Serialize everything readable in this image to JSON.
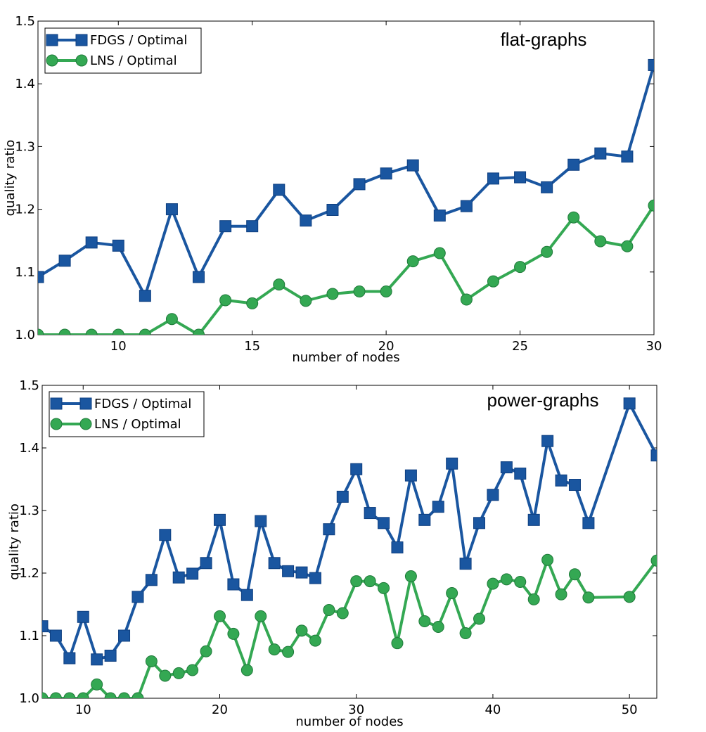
{
  "colors": {
    "fdgs": "#1a56a0",
    "fdgs_edge": "#0e3f80",
    "lns": "#34a853",
    "lns_edge": "#1f7a3a"
  },
  "chart_data": [
    {
      "type": "line",
      "annotation": "flat-graphs",
      "xlabel": "number of nodes",
      "ylabel": "quality ratio",
      "xlim": [
        7,
        30
      ],
      "ylim": [
        1.0,
        1.5
      ],
      "xticks": [
        "10",
        "15",
        "20",
        "25",
        "30"
      ],
      "yticks": [
        "1.0",
        "1.1",
        "1.2",
        "1.3",
        "1.4",
        "1.5"
      ],
      "legend_position": "top-left",
      "grid": false,
      "series": [
        {
          "name": "FDGS / Optimal",
          "marker": "square",
          "x": [
            7,
            8,
            9,
            10,
            11,
            12,
            13,
            14,
            15,
            16,
            17,
            18,
            19,
            20,
            21,
            22,
            23,
            24,
            25,
            26,
            27,
            28,
            29,
            30
          ],
          "y": [
            1.092,
            1.118,
            1.147,
            1.142,
            1.062,
            1.2,
            1.092,
            1.173,
            1.173,
            1.231,
            1.182,
            1.199,
            1.24,
            1.257,
            1.27,
            1.19,
            1.205,
            1.249,
            1.251,
            1.235,
            1.271,
            1.289,
            1.284,
            1.43
          ]
        },
        {
          "name": "LNS / Optimal",
          "marker": "circle",
          "x": [
            7,
            8,
            9,
            10,
            11,
            12,
            13,
            14,
            15,
            16,
            17,
            18,
            19,
            20,
            21,
            22,
            23,
            24,
            25,
            26,
            27,
            28,
            29,
            30
          ],
          "y": [
            1.0,
            1.0,
            1.0,
            1.0,
            1.0,
            1.025,
            1.0,
            1.055,
            1.05,
            1.08,
            1.054,
            1.065,
            1.069,
            1.069,
            1.117,
            1.13,
            1.056,
            1.085,
            1.108,
            1.132,
            1.187,
            1.149,
            1.141,
            1.206
          ]
        }
      ]
    },
    {
      "type": "line",
      "annotation": "power-graphs",
      "xlabel": "number of nodes",
      "ylabel": "quality ratio",
      "xlim": [
        7,
        52
      ],
      "ylim": [
        1.0,
        1.5
      ],
      "xticks": [
        "10",
        "20",
        "30",
        "40",
        "50"
      ],
      "yticks": [
        "1.0",
        "1.1",
        "1.2",
        "1.3",
        "1.4",
        "1.5"
      ],
      "legend_position": "top-left",
      "grid": false,
      "series": [
        {
          "name": "FDGS / Optimal",
          "marker": "square",
          "x": [
            7,
            8,
            9,
            10,
            11,
            12,
            13,
            14,
            15,
            16,
            17,
            18,
            19,
            20,
            21,
            22,
            23,
            24,
            25,
            26,
            27,
            28,
            29,
            30,
            31,
            32,
            33,
            34,
            35,
            36,
            37,
            38,
            39,
            40,
            41,
            42,
            43,
            44,
            45,
            46,
            47,
            50,
            52
          ],
          "y": [
            1.115,
            1.1,
            1.064,
            1.13,
            1.062,
            1.068,
            1.1,
            1.162,
            1.189,
            1.261,
            1.193,
            1.199,
            1.216,
            1.285,
            1.182,
            1.165,
            1.283,
            1.216,
            1.203,
            1.201,
            1.192,
            1.27,
            1.322,
            1.366,
            1.296,
            1.28,
            1.241,
            1.356,
            1.285,
            1.306,
            1.375,
            1.215,
            1.28,
            1.325,
            1.369,
            1.359,
            1.285,
            1.411,
            1.348,
            1.341,
            1.28,
            1.471,
            1.388
          ]
        },
        {
          "name": "LNS / Optimal",
          "marker": "circle",
          "x": [
            7,
            8,
            9,
            10,
            11,
            12,
            13,
            14,
            15,
            16,
            17,
            18,
            19,
            20,
            21,
            22,
            23,
            24,
            25,
            26,
            27,
            28,
            29,
            30,
            31,
            32,
            33,
            34,
            35,
            36,
            37,
            38,
            39,
            40,
            41,
            42,
            43,
            44,
            45,
            46,
            47,
            50,
            52
          ],
          "y": [
            1.0,
            1.0,
            1.0,
            1.0,
            1.022,
            1.0,
            1.0,
            1.0,
            1.059,
            1.036,
            1.04,
            1.045,
            1.075,
            1.131,
            1.103,
            1.045,
            1.131,
            1.078,
            1.074,
            1.108,
            1.092,
            1.141,
            1.136,
            1.187,
            1.187,
            1.176,
            1.088,
            1.195,
            1.123,
            1.114,
            1.168,
            1.104,
            1.127,
            1.183,
            1.19,
            1.186,
            1.158,
            1.221,
            1.166,
            1.198,
            1.161,
            1.162,
            1.22
          ]
        }
      ]
    }
  ]
}
